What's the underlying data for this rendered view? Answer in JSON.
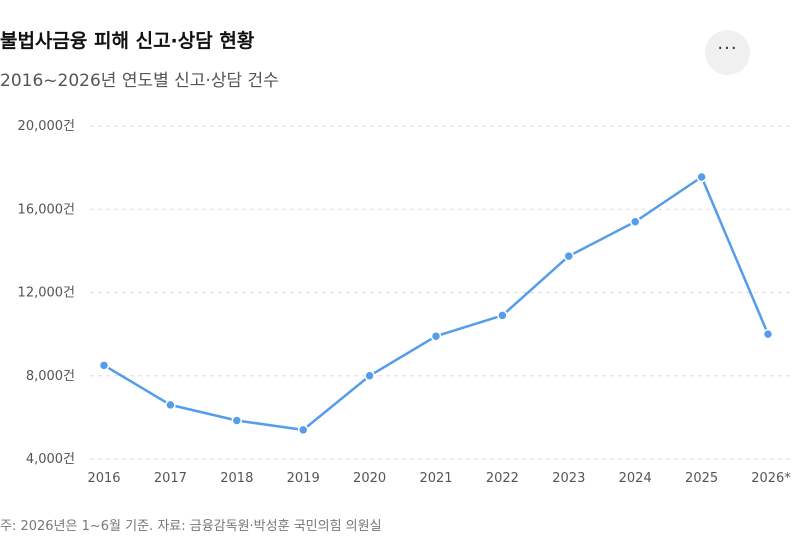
{
  "title": "불법사금융 피해 신고·상담 현황",
  "subtitle": "2016~2026년 연도별 신고·상담 건수",
  "menu_icon": "more-horizontal-icon",
  "footnote": "주: 2026년은 1~6월 기준. 자료: 금융감독원·박성훈 국민의힘 의원실",
  "colors": {
    "line": "#559dea",
    "grid": "#dddddd"
  },
  "chart_data": {
    "type": "line",
    "categories": [
      "2016",
      "2017",
      "2018",
      "2019",
      "2020",
      "2021",
      "2022",
      "2023",
      "2024",
      "2025",
      "2026*"
    ],
    "series": [
      {
        "values": [
          8500,
          6600,
          5850,
          5400,
          8000,
          9900,
          10900,
          13750,
          15400,
          17550,
          10000
        ]
      }
    ],
    "ylim": [
      4000,
      20000
    ],
    "yticks": [
      4000,
      8000,
      12000,
      16000,
      20000
    ],
    "ytick_labels": [
      "4,000건",
      "8,000건",
      "12,000건",
      "16,000건",
      "20,000건"
    ],
    "grid": true,
    "legend": "none"
  }
}
